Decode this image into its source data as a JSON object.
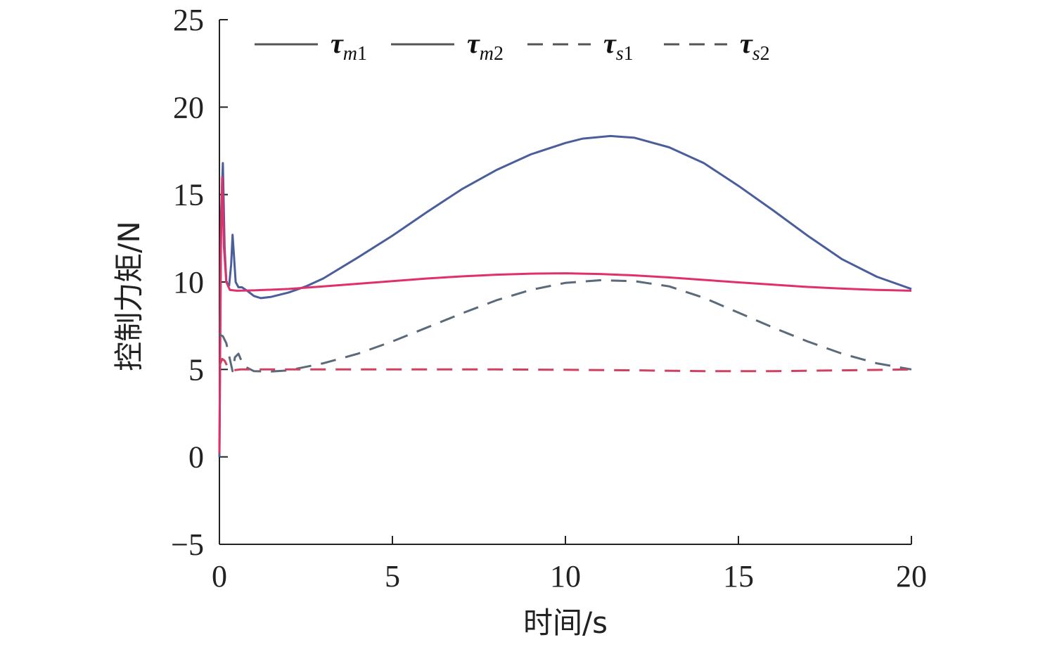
{
  "chart_data": {
    "type": "line",
    "xlabel": "时间/s",
    "ylabel": "控制力矩/N",
    "xlim": [
      0,
      20
    ],
    "ylim": [
      -5,
      25
    ],
    "x_ticks": [
      "0",
      "5",
      "10",
      "15",
      "20"
    ],
    "y_ticks": [
      "−5",
      "0",
      "5",
      "10",
      "15",
      "20",
      "25"
    ],
    "grid": false,
    "legend_position": "top",
    "legend": [
      {
        "symbol": "τ",
        "sub_letter": "m",
        "sub_number": "1"
      },
      {
        "symbol": "τ",
        "sub_letter": "m",
        "sub_number": "2"
      },
      {
        "symbol": "τ",
        "sub_letter": "s",
        "sub_number": "1"
      },
      {
        "symbol": "τ",
        "sub_letter": "s",
        "sub_number": "2"
      }
    ],
    "series": [
      {
        "name": "τm1",
        "color": "#4a5e9c",
        "dash": "solid",
        "points": [
          [
            0,
            0
          ],
          [
            0.05,
            14.0
          ],
          [
            0.1,
            16.8
          ],
          [
            0.15,
            12.0
          ],
          [
            0.2,
            10.0
          ],
          [
            0.28,
            9.8
          ],
          [
            0.34,
            11.0
          ],
          [
            0.38,
            12.7
          ],
          [
            0.42,
            11.5
          ],
          [
            0.47,
            10.0
          ],
          [
            0.55,
            9.7
          ],
          [
            0.65,
            9.7
          ],
          [
            0.8,
            9.5
          ],
          [
            1.0,
            9.2
          ],
          [
            1.2,
            9.08
          ],
          [
            1.5,
            9.15
          ],
          [
            2.0,
            9.4
          ],
          [
            2.5,
            9.75
          ],
          [
            3.0,
            10.2
          ],
          [
            4.0,
            11.4
          ],
          [
            5.0,
            12.65
          ],
          [
            6.0,
            14.0
          ],
          [
            7.0,
            15.3
          ],
          [
            8.0,
            16.4
          ],
          [
            9.0,
            17.3
          ],
          [
            10.0,
            17.95
          ],
          [
            10.5,
            18.2
          ],
          [
            11.3,
            18.35
          ],
          [
            12.0,
            18.25
          ],
          [
            13.0,
            17.7
          ],
          [
            14.0,
            16.8
          ],
          [
            15.0,
            15.5
          ],
          [
            16.0,
            14.1
          ],
          [
            17.0,
            12.65
          ],
          [
            18.0,
            11.3
          ],
          [
            19.0,
            10.3
          ],
          [
            20.0,
            9.6
          ]
        ]
      },
      {
        "name": "τm2",
        "color": "#e0306a",
        "dash": "solid",
        "points": [
          [
            0,
            0.2
          ],
          [
            0.04,
            12.0
          ],
          [
            0.08,
            16.0
          ],
          [
            0.13,
            12.0
          ],
          [
            0.2,
            10.0
          ],
          [
            0.3,
            9.55
          ],
          [
            0.5,
            9.5
          ],
          [
            1.0,
            9.52
          ],
          [
            2.0,
            9.6
          ],
          [
            3.0,
            9.75
          ],
          [
            4.0,
            9.9
          ],
          [
            5.0,
            10.05
          ],
          [
            6.0,
            10.2
          ],
          [
            7.0,
            10.32
          ],
          [
            8.0,
            10.42
          ],
          [
            9.0,
            10.48
          ],
          [
            10.0,
            10.5
          ],
          [
            11.0,
            10.46
          ],
          [
            12.0,
            10.38
          ],
          [
            13.0,
            10.26
          ],
          [
            14.0,
            10.12
          ],
          [
            15.0,
            9.98
          ],
          [
            16.0,
            9.85
          ],
          [
            17.0,
            9.72
          ],
          [
            18.0,
            9.62
          ],
          [
            19.0,
            9.55
          ],
          [
            20.0,
            9.5
          ]
        ]
      },
      {
        "name": "τs1",
        "color": "#5a6a7a",
        "dash": "dashed",
        "points": [
          [
            0,
            7.0
          ],
          [
            0.1,
            6.9
          ],
          [
            0.2,
            6.5
          ],
          [
            0.3,
            5.6
          ],
          [
            0.38,
            4.9
          ],
          [
            0.45,
            5.7
          ],
          [
            0.55,
            5.9
          ],
          [
            0.7,
            5.2
          ],
          [
            1.0,
            4.9
          ],
          [
            1.5,
            4.88
          ],
          [
            2.0,
            4.95
          ],
          [
            3.0,
            5.35
          ],
          [
            4.0,
            5.9
          ],
          [
            5.0,
            6.6
          ],
          [
            6.0,
            7.4
          ],
          [
            7.0,
            8.2
          ],
          [
            8.0,
            8.95
          ],
          [
            9.0,
            9.55
          ],
          [
            10.0,
            9.95
          ],
          [
            11.0,
            10.1
          ],
          [
            12.0,
            10.05
          ],
          [
            13.0,
            9.75
          ],
          [
            14.0,
            9.1
          ],
          [
            15.0,
            8.25
          ],
          [
            16.0,
            7.4
          ],
          [
            17.0,
            6.6
          ],
          [
            18.0,
            5.9
          ],
          [
            19.0,
            5.35
          ],
          [
            20.0,
            5.0
          ]
        ]
      },
      {
        "name": "τs2",
        "color": "#d04060",
        "dash": "dashed",
        "points": [
          [
            0,
            5.2
          ],
          [
            0.08,
            5.6
          ],
          [
            0.15,
            5.5
          ],
          [
            0.25,
            5.1
          ],
          [
            0.4,
            4.95
          ],
          [
            0.6,
            5.0
          ],
          [
            1.0,
            5.0
          ],
          [
            2.0,
            5.0
          ],
          [
            4.0,
            5.0
          ],
          [
            6.0,
            5.0
          ],
          [
            8.0,
            5.0
          ],
          [
            10.0,
            4.98
          ],
          [
            12.0,
            4.95
          ],
          [
            14.0,
            4.9
          ],
          [
            16.0,
            4.9
          ],
          [
            18.0,
            4.95
          ],
          [
            20.0,
            5.0
          ]
        ]
      }
    ]
  }
}
